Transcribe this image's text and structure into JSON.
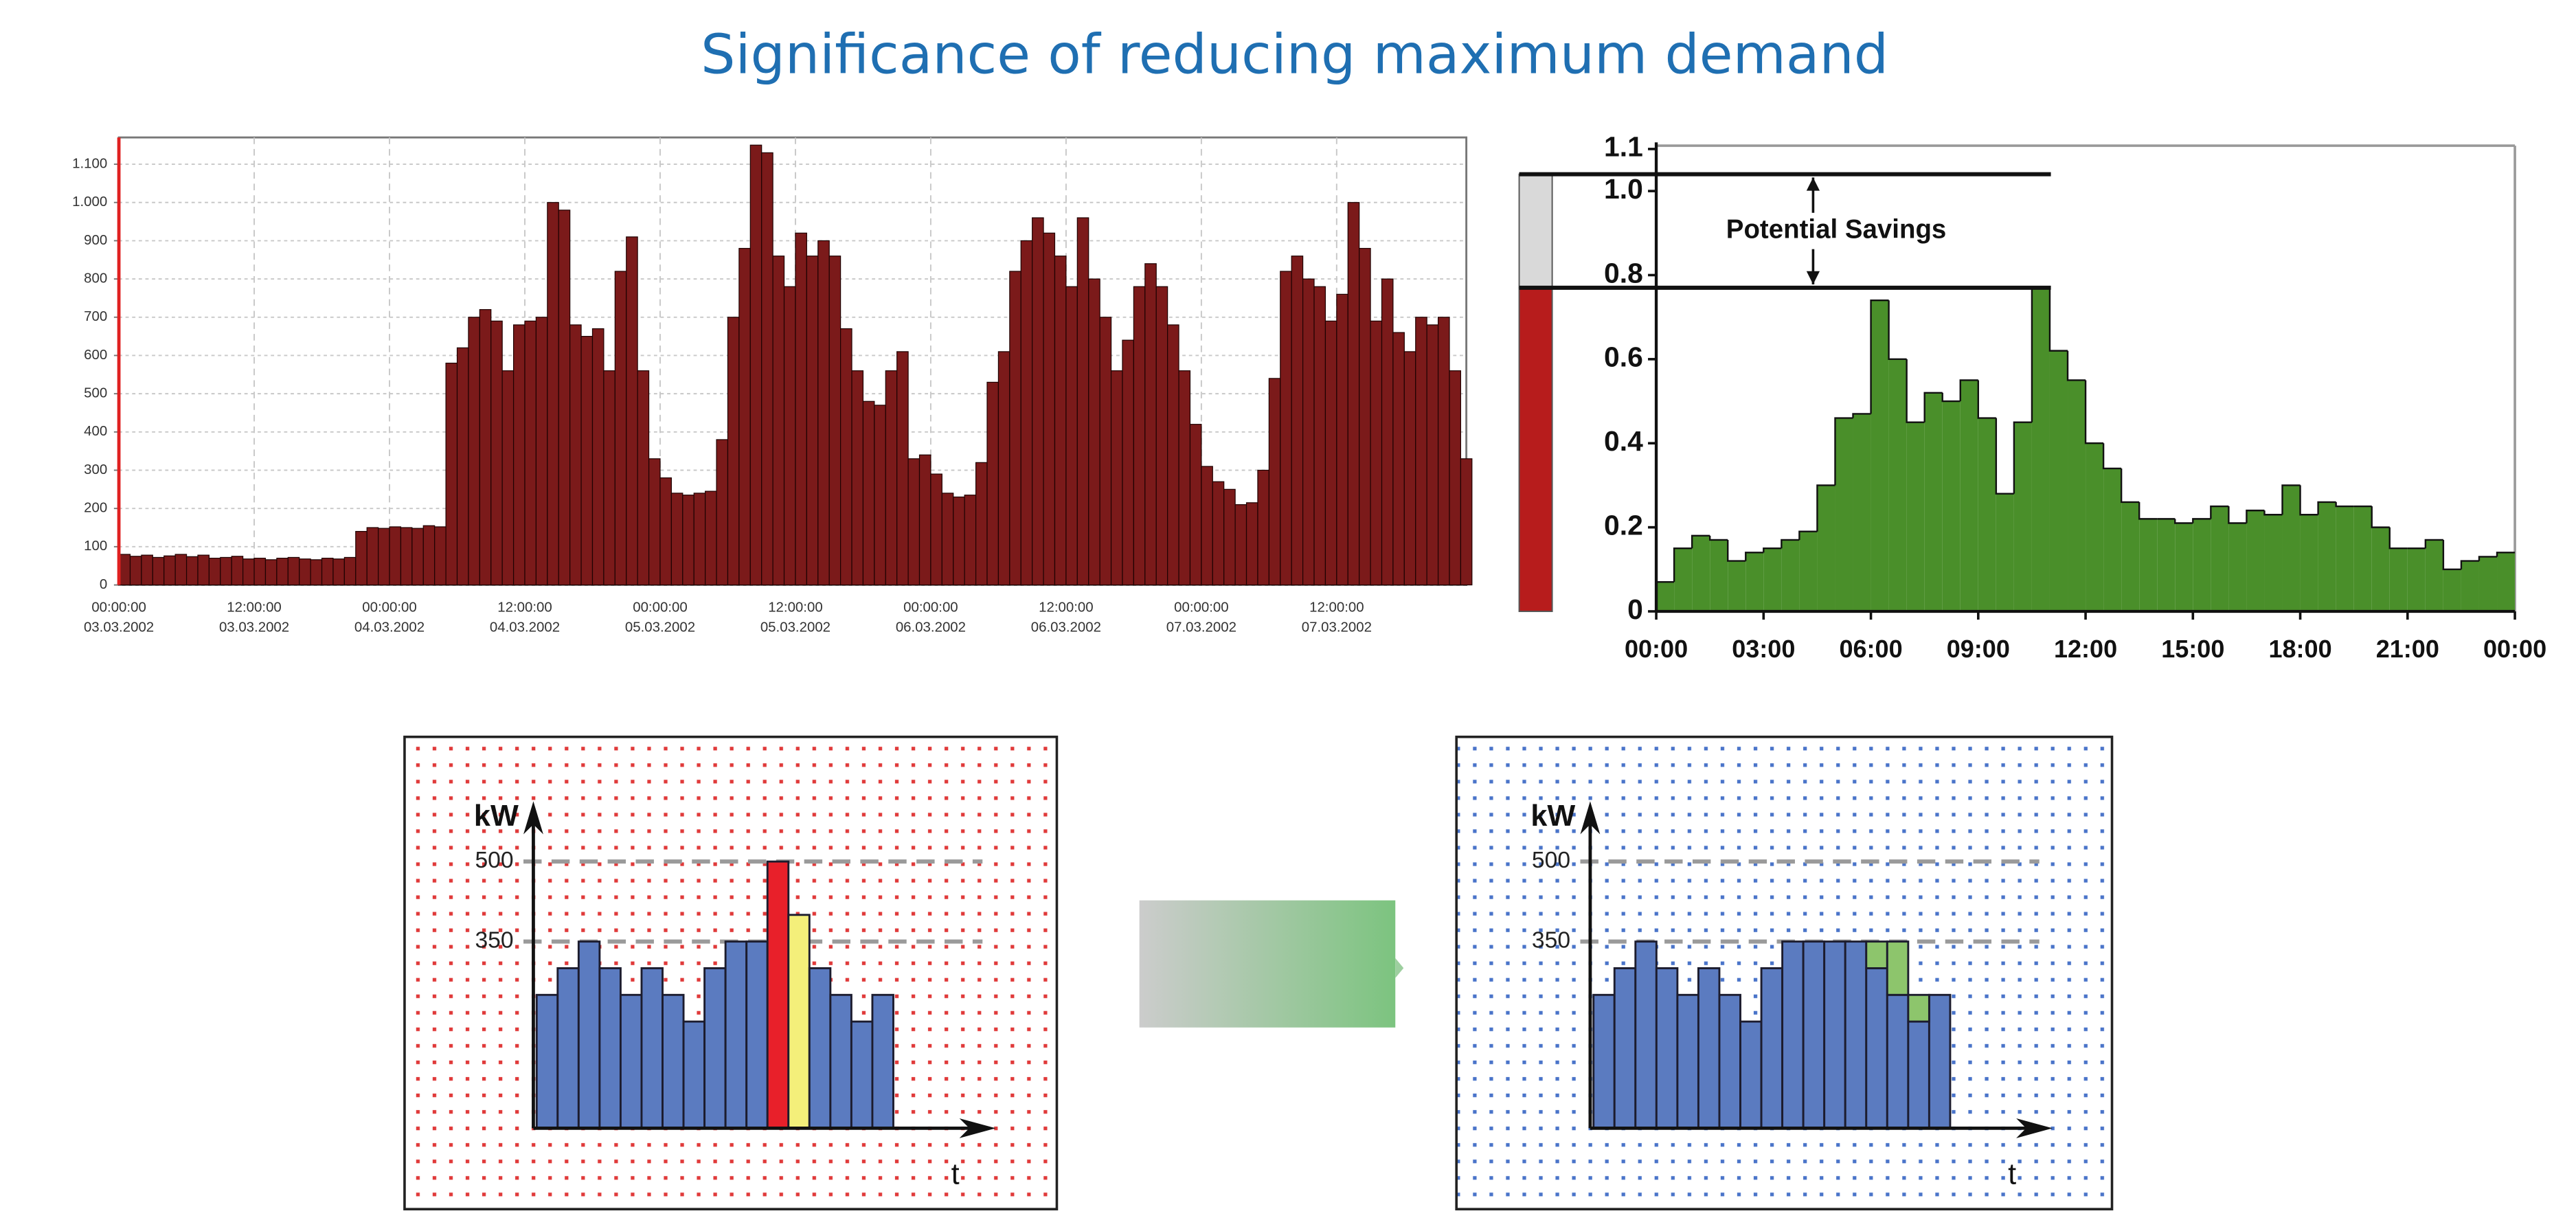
{
  "title": "Significance of reducing maximum demand",
  "chart_data": [
    {
      "type": "bar",
      "color": "#7b1a1a",
      "x": [
        0,
        1,
        2,
        3,
        4,
        5,
        6,
        7,
        8,
        9,
        10,
        11,
        12,
        13,
        14,
        15,
        16,
        17,
        18,
        19,
        20,
        21,
        22,
        23,
        24,
        25,
        26,
        27,
        28,
        29,
        30,
        31,
        32,
        33,
        34,
        35,
        36,
        37,
        38,
        39,
        40,
        41,
        42,
        43,
        44,
        45,
        46,
        47,
        48,
        49,
        50,
        51,
        52,
        53,
        54,
        55,
        56,
        57,
        58,
        59,
        60,
        61,
        62,
        63,
        64,
        65,
        66,
        67,
        68,
        69,
        70,
        71,
        72,
        73,
        74,
        75,
        76,
        77,
        78,
        79,
        80,
        81,
        82,
        83,
        84,
        85,
        86,
        87,
        88,
        89,
        90,
        91,
        92,
        93,
        94,
        95,
        96,
        97,
        98,
        99,
        100,
        101,
        102,
        103,
        104,
        105,
        106,
        107,
        108,
        109,
        110,
        111,
        112,
        113,
        114,
        115,
        116,
        117,
        118,
        119
      ],
      "values": [
        80,
        75,
        78,
        72,
        76,
        80,
        74,
        78,
        70,
        72,
        75,
        68,
        70,
        66,
        70,
        72,
        68,
        66,
        70,
        68,
        72,
        140,
        150,
        148,
        152,
        150,
        148,
        155,
        152,
        580,
        620,
        700,
        720,
        690,
        560,
        680,
        690,
        700,
        1000,
        980,
        680,
        650,
        670,
        560,
        820,
        910,
        560,
        330,
        280,
        240,
        235,
        240,
        245,
        380,
        700,
        880,
        1150,
        1130,
        860,
        780,
        920,
        860,
        900,
        860,
        670,
        560,
        480,
        470,
        560,
        610,
        330,
        340,
        290,
        240,
        230,
        235,
        320,
        530,
        610,
        820,
        900,
        960,
        920,
        860,
        780,
        960,
        800,
        700,
        560,
        640,
        780,
        840,
        780,
        680,
        560,
        420,
        310,
        270,
        250,
        210,
        215,
        300,
        540,
        820,
        860,
        800,
        780,
        690,
        760,
        1000,
        880,
        690,
        800,
        660,
        610,
        700,
        680,
        700,
        560,
        330
      ],
      "xlim": [
        0,
        119.5
      ],
      "ylim": [
        0,
        1170
      ],
      "yticks": [
        0,
        100,
        200,
        300,
        400,
        500,
        600,
        700,
        800,
        900,
        {
          "value": 1000,
          "label": "1.000"
        },
        {
          "value": 1100,
          "label": "1.100"
        }
      ],
      "xticks": [
        {
          "value": 0,
          "label": "00:00:00",
          "date": "03.03.2002"
        },
        {
          "value": 12,
          "label": "12:00:00",
          "date": "03.03.2002"
        },
        {
          "value": 24,
          "label": "00:00:00",
          "date": "04.03.2002"
        },
        {
          "value": 36,
          "label": "12:00:00",
          "date": "04.03.2002"
        },
        {
          "value": 48,
          "label": "00:00:00",
          "date": "05.03.2002"
        },
        {
          "value": 60,
          "label": "12:00:00",
          "date": "05.03.2002"
        },
        {
          "value": 72,
          "label": "00:00:00",
          "date": "06.03.2002"
        },
        {
          "value": 84,
          "label": "12:00:00",
          "date": "06.03.2002"
        },
        {
          "value": 96,
          "label": "00:00:00",
          "date": "07.03.2002"
        },
        {
          "value": 108,
          "label": "12:00:00",
          "date": "07.03.2002"
        }
      ],
      "grid": true
    },
    {
      "type": "step-area",
      "color": "#4a8f2a",
      "x": [
        0,
        0.5,
        1,
        1.5,
        2,
        2.5,
        3,
        3.5,
        4,
        4.5,
        5,
        5.5,
        6,
        6.5,
        7,
        7.5,
        8,
        8.5,
        9,
        9.5,
        10,
        10.5,
        11,
        11.5,
        12,
        12.5,
        13,
        13.5,
        14,
        14.5,
        15,
        15.5,
        16,
        16.5,
        17,
        17.5,
        18,
        18.5,
        19,
        19.5,
        20,
        20.5,
        21,
        21.5,
        22,
        22.5,
        23,
        23.5
      ],
      "values": [
        0.07,
        0.15,
        0.18,
        0.17,
        0.12,
        0.14,
        0.15,
        0.17,
        0.19,
        0.3,
        0.46,
        0.47,
        0.74,
        0.6,
        0.45,
        0.52,
        0.5,
        0.55,
        0.46,
        0.28,
        0.45,
        0.77,
        0.62,
        0.55,
        0.4,
        0.34,
        0.26,
        0.22,
        0.22,
        0.21,
        0.22,
        0.25,
        0.21,
        0.24,
        0.23,
        0.3,
        0.23,
        0.26,
        0.25,
        0.25,
        0.2,
        0.15,
        0.15,
        0.17,
        0.1,
        0.12,
        0.13,
        0.14
      ],
      "xlim": [
        0,
        24
      ],
      "ylim": [
        0,
        1.1
      ],
      "yticks": [
        0,
        0.2,
        0.4,
        0.6,
        0.8,
        {
          "value": 1,
          "label": "1.0"
        },
        1.1
      ],
      "xticks": [
        {
          "value": 0,
          "label": "00:00"
        },
        {
          "value": 3,
          "label": "03:00"
        },
        {
          "value": 6,
          "label": "06:00"
        },
        {
          "value": 9,
          "label": "09:00"
        },
        {
          "value": 12,
          "label": "12:00"
        },
        {
          "value": 15,
          "label": "15:00"
        },
        {
          "value": 18,
          "label": "18:00"
        },
        {
          "value": 21,
          "label": "21:00"
        },
        {
          "value": 24,
          "label": "00:00"
        }
      ],
      "reference_lines": [
        1.04,
        0.77
      ],
      "band_colors": [
        "#d9d9d9",
        "#b71c1c"
      ],
      "annotation": "Potential Savings"
    },
    {
      "type": "bar",
      "ylabel": "kW",
      "xlabel": "t",
      "ylim": [
        0,
        613
      ],
      "yticks": [
        350,
        500
      ],
      "background_dots": "#e03a3a",
      "series": [
        {
          "colors": [
            "#5b7bc0",
            "#5b7bc0",
            "#5b7bc0",
            "#5b7bc0",
            "#5b7bc0",
            "#5b7bc0",
            "#5b7bc0",
            "#5b7bc0",
            "#5b7bc0",
            "#5b7bc0",
            "#5b7bc0",
            "#e8202a",
            "#f4ef7a",
            "#5b7bc0",
            "#5b7bc0",
            "#5b7bc0",
            "#5b7bc0"
          ],
          "values": [
            250,
            300,
            350,
            300,
            250,
            300,
            250,
            200,
            300,
            350,
            350,
            500,
            400,
            300,
            250,
            200,
            250
          ]
        }
      ]
    },
    {
      "type": "bar",
      "ylabel": "kW",
      "xlabel": "t",
      "ylim": [
        0,
        613
      ],
      "yticks": [
        350,
        500
      ],
      "background_dots": "#4a74c9",
      "series": [
        {
          "color": "#5b7bc0",
          "values": [
            250,
            300,
            350,
            300,
            250,
            300,
            250,
            200,
            300,
            350,
            350,
            350,
            350,
            300,
            250,
            200,
            250
          ]
        },
        {
          "color": "#8dc56c",
          "values": [
            0,
            0,
            0,
            0,
            0,
            0,
            0,
            0,
            0,
            0,
            0,
            0,
            0,
            50,
            100,
            50,
            0
          ]
        }
      ]
    }
  ]
}
